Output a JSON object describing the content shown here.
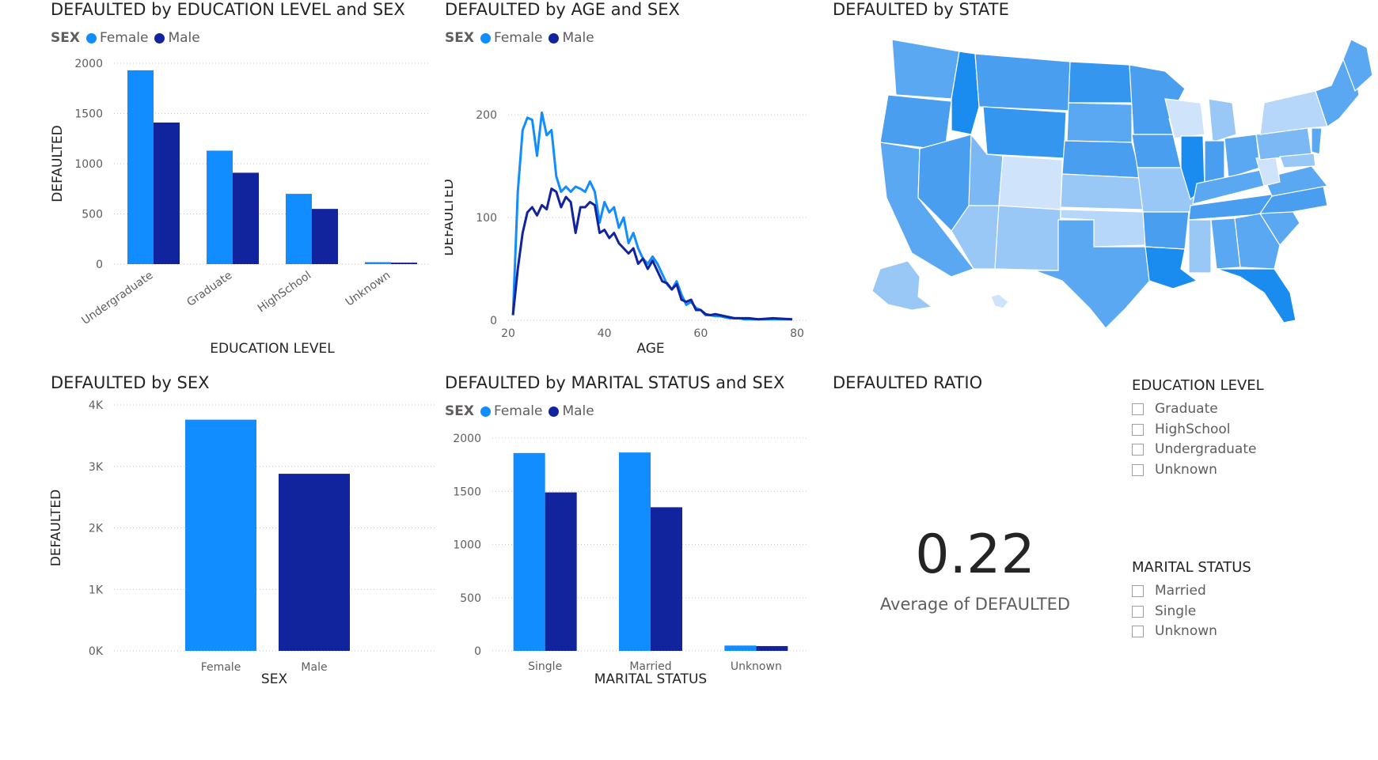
{
  "colors": {
    "female": "#118dff",
    "male": "#12239e",
    "grid": "#c8c6c4",
    "axis_text": "#605e5c"
  },
  "legend": {
    "title": "SEX",
    "female": "Female",
    "male": "Male"
  },
  "chart_data": [
    {
      "id": "edu",
      "type": "bar",
      "title": "DEFAULTED by EDUCATION LEVEL and SEX",
      "xlabel": "EDUCATION LEVEL",
      "ylabel": "DEFAULTED",
      "categories": [
        "Undergraduate",
        "Graduate",
        "HighSchool",
        "Unknown"
      ],
      "series": [
        {
          "name": "Female",
          "values": [
            1930,
            1130,
            700,
            20
          ]
        },
        {
          "name": "Male",
          "values": [
            1410,
            910,
            550,
            15
          ]
        }
      ],
      "ylim": [
        0,
        2000
      ],
      "yticks": [
        0,
        500,
        1000,
        1500,
        2000
      ],
      "ytick_labels": [
        "0",
        "500",
        "1000",
        "1500",
        "2000"
      ],
      "grid": true,
      "legend_position": "top-left"
    },
    {
      "id": "age",
      "type": "line",
      "title": "DEFAULTED by AGE and SEX",
      "xlabel": "AGE",
      "ylabel": "DEFAULTED",
      "xlim": [
        20,
        80
      ],
      "xticks": [
        20,
        40,
        60,
        80
      ],
      "ylim": [
        0,
        200
      ],
      "yticks": [
        0,
        100,
        200
      ],
      "grid": true,
      "legend_position": "top-left",
      "series": [
        {
          "name": "Female",
          "x": [
            21,
            22,
            23,
            24,
            25,
            26,
            27,
            28,
            29,
            30,
            31,
            32,
            33,
            34,
            35,
            36,
            37,
            38,
            39,
            40,
            41,
            42,
            43,
            44,
            45,
            46,
            47,
            48,
            49,
            50,
            51,
            52,
            53,
            54,
            55,
            56,
            57,
            58,
            59,
            60,
            61,
            62,
            63,
            64,
            65,
            66,
            67,
            68,
            69,
            70,
            72,
            75,
            79
          ],
          "y": [
            5,
            125,
            185,
            197,
            195,
            160,
            202,
            180,
            185,
            140,
            125,
            130,
            125,
            130,
            128,
            125,
            135,
            125,
            95,
            115,
            105,
            110,
            90,
            100,
            75,
            85,
            70,
            60,
            55,
            62,
            55,
            45,
            35,
            30,
            38,
            25,
            15,
            18,
            12,
            10,
            5,
            5,
            4,
            4,
            3,
            2,
            2,
            2,
            1,
            1,
            1,
            1,
            1
          ]
        },
        {
          "name": "Male",
          "x": [
            21,
            22,
            23,
            24,
            25,
            26,
            27,
            28,
            29,
            30,
            31,
            32,
            33,
            34,
            35,
            36,
            37,
            38,
            39,
            40,
            41,
            42,
            43,
            44,
            45,
            46,
            47,
            48,
            49,
            50,
            51,
            52,
            53,
            54,
            55,
            56,
            57,
            58,
            59,
            60,
            61,
            62,
            63,
            64,
            65,
            66,
            67,
            68,
            69,
            70,
            72,
            75,
            79
          ],
          "y": [
            5,
            50,
            85,
            105,
            110,
            102,
            112,
            108,
            128,
            125,
            110,
            120,
            115,
            85,
            110,
            110,
            115,
            112,
            85,
            88,
            80,
            85,
            75,
            70,
            65,
            70,
            55,
            60,
            50,
            58,
            48,
            38,
            36,
            30,
            35,
            20,
            18,
            20,
            10,
            10,
            6,
            5,
            6,
            5,
            4,
            3,
            2,
            2,
            2,
            2,
            1,
            2,
            1
          ]
        }
      ]
    },
    {
      "id": "state",
      "type": "map",
      "title": "DEFAULTED by STATE"
    },
    {
      "id": "sex",
      "type": "bar",
      "title": "DEFAULTED by SEX",
      "xlabel": "SEX",
      "ylabel": "DEFAULTED",
      "categories": [
        "Female",
        "Male"
      ],
      "values": [
        3760,
        2880
      ],
      "ylim": [
        0,
        4000
      ],
      "yticks": [
        0,
        1000,
        2000,
        3000,
        4000
      ],
      "ytick_labels": [
        "0K",
        "1K",
        "2K",
        "3K",
        "4K"
      ],
      "grid": true
    },
    {
      "id": "marital",
      "type": "bar",
      "title": "DEFAULTED by MARITAL STATUS and SEX",
      "xlabel": "MARITAL STATUS",
      "ylabel": "DEFAULTED",
      "categories": [
        "Single",
        "Married",
        "Unknown"
      ],
      "series": [
        {
          "name": "Female",
          "values": [
            1860,
            1865,
            50
          ]
        },
        {
          "name": "Male",
          "values": [
            1490,
            1350,
            45
          ]
        }
      ],
      "ylim": [
        0,
        2000
      ],
      "yticks": [
        0,
        500,
        1000,
        1500,
        2000
      ],
      "ytick_labels": [
        "0",
        "500",
        "1000",
        "1500",
        "2000"
      ],
      "grid": true,
      "legend_position": "top-left"
    }
  ],
  "card": {
    "title": "DEFAULTED RATIO",
    "value": "0.22",
    "label": "Average of DEFAULTED"
  },
  "slicers": {
    "education": {
      "title": "EDUCATION LEVEL",
      "items": [
        "Graduate",
        "HighSchool",
        "Undergraduate",
        "Unknown"
      ]
    },
    "marital": {
      "title": "MARITAL STATUS",
      "items": [
        "Married",
        "Single",
        "Unknown"
      ]
    }
  }
}
